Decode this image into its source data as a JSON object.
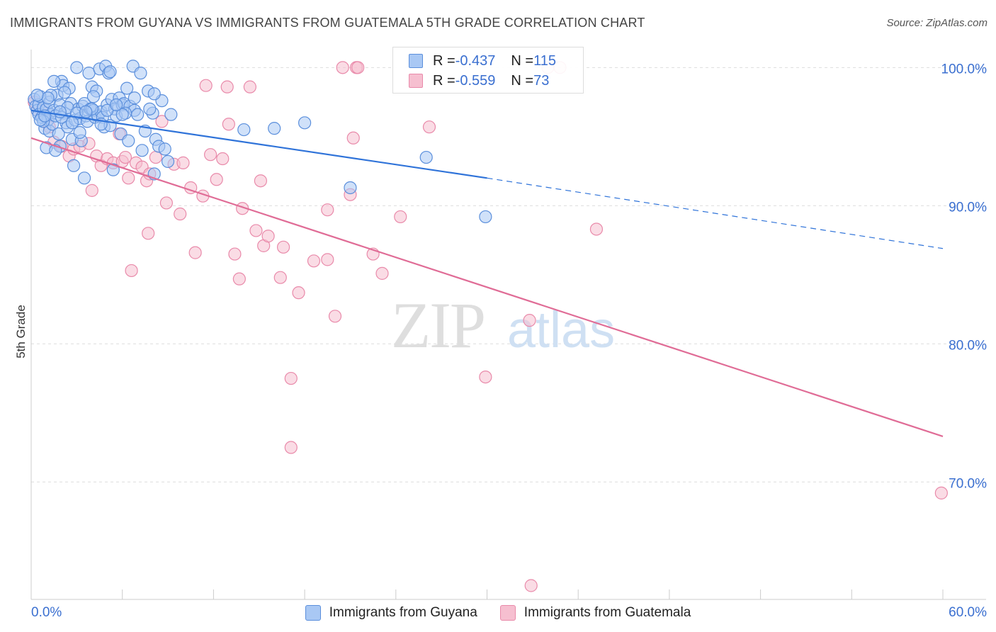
{
  "header": {
    "title": "IMMIGRANTS FROM GUYANA VS IMMIGRANTS FROM GUATEMALA 5TH GRADE CORRELATION CHART",
    "source": "Source: ZipAtlas.com"
  },
  "watermark": {
    "zip": "ZIP",
    "atlas": "atlas"
  },
  "colors": {
    "guyana_fill": "#a9c8f4",
    "guyana_stroke": "#5b8fdc",
    "guyana_line": "#2f73d9",
    "guatemala_fill": "#f6bfd0",
    "guatemala_stroke": "#e98aaa",
    "guatemala_line": "#e06c96",
    "axis_label": "#3a6fd0",
    "grid": "#dddddd"
  },
  "stats": [
    {
      "r_label": "R = ",
      "r_value": "-0.437",
      "n_label": "N = ",
      "n_value": "115"
    },
    {
      "r_label": "R = ",
      "r_value": "-0.559",
      "n_label": "N = ",
      "n_value": "73"
    }
  ],
  "legend": [
    {
      "label": "Immigrants from Guyana"
    },
    {
      "label": "Immigrants from Guatemala"
    }
  ],
  "chart_data": {
    "type": "scatter",
    "title": "IMMIGRANTS FROM GUYANA VS IMMIGRANTS FROM GUATEMALA 5TH GRADE CORRELATION CHART",
    "xlabel": "",
    "ylabel": "5th Grade",
    "xlim": [
      0,
      60
    ],
    "ylim": [
      61.5,
      101.3
    ],
    "x_tick_labels": [
      {
        "value": 0,
        "label": "0.0%"
      },
      {
        "value": 60,
        "label": "60.0%"
      }
    ],
    "y_tick_labels": [
      {
        "value": 100,
        "label": "100.0%"
      },
      {
        "value": 90,
        "label": "90.0%"
      },
      {
        "value": 80,
        "label": "80.0%"
      },
      {
        "value": 70,
        "label": "70.0%"
      }
    ],
    "grid": true,
    "series": [
      {
        "name": "Immigrants from Guyana",
        "r": -0.437,
        "n": 115,
        "trend": {
          "x0": 0,
          "y0": 96.9,
          "x1": 30,
          "y1": 92.0,
          "dash_to_x": 60,
          "dash_y": 86.9
        },
        "points": [
          [
            0.2,
            97.7
          ],
          [
            0.3,
            97.2
          ],
          [
            0.4,
            96.9
          ],
          [
            0.5,
            97.3
          ],
          [
            0.5,
            96.6
          ],
          [
            0.6,
            97.9
          ],
          [
            0.7,
            96.4
          ],
          [
            0.8,
            97.1
          ],
          [
            0.9,
            95.6
          ],
          [
            1.0,
            97.0
          ],
          [
            1.0,
            94.2
          ],
          [
            1.1,
            96.2
          ],
          [
            1.2,
            97.5
          ],
          [
            1.2,
            95.4
          ],
          [
            1.3,
            96.6
          ],
          [
            1.4,
            95.9
          ],
          [
            1.5,
            96.9
          ],
          [
            1.6,
            96.5
          ],
          [
            1.7,
            98.0
          ],
          [
            1.8,
            95.2
          ],
          [
            1.9,
            94.3
          ],
          [
            1.9,
            97.3
          ],
          [
            2.0,
            99.0
          ],
          [
            2.1,
            98.7
          ],
          [
            2.2,
            96.7
          ],
          [
            2.3,
            96.0
          ],
          [
            2.4,
            95.7
          ],
          [
            2.5,
            98.5
          ],
          [
            2.6,
            97.4
          ],
          [
            2.7,
            94.8
          ],
          [
            2.8,
            92.9
          ],
          [
            2.9,
            96.2
          ],
          [
            3.0,
            100.0
          ],
          [
            3.1,
            97.0
          ],
          [
            3.2,
            96.3
          ],
          [
            3.3,
            94.7
          ],
          [
            3.4,
            97.2
          ],
          [
            3.5,
            97.4
          ],
          [
            3.6,
            96.5
          ],
          [
            3.7,
            96.1
          ],
          [
            3.8,
            99.6
          ],
          [
            3.9,
            97.0
          ],
          [
            4.0,
            98.6
          ],
          [
            4.1,
            96.9
          ],
          [
            4.2,
            96.4
          ],
          [
            4.3,
            98.3
          ],
          [
            4.4,
            96.5
          ],
          [
            4.5,
            99.9
          ],
          [
            4.6,
            96.8
          ],
          [
            4.7,
            96.4
          ],
          [
            4.8,
            95.7
          ],
          [
            4.9,
            100.1
          ],
          [
            5.0,
            97.3
          ],
          [
            5.1,
            99.6
          ],
          [
            5.2,
            95.8
          ],
          [
            5.3,
            97.7
          ],
          [
            5.4,
            92.6
          ],
          [
            5.5,
            97.0
          ],
          [
            5.6,
            96.5
          ],
          [
            5.8,
            97.8
          ],
          [
            5.9,
            95.2
          ],
          [
            6.0,
            97.3
          ],
          [
            6.1,
            97.4
          ],
          [
            6.3,
            98.5
          ],
          [
            6.4,
            94.7
          ],
          [
            6.5,
            97.2
          ],
          [
            6.7,
            100.1
          ],
          [
            6.8,
            96.9
          ],
          [
            7.0,
            96.6
          ],
          [
            7.2,
            99.6
          ],
          [
            7.3,
            94.0
          ],
          [
            7.5,
            95.4
          ],
          [
            7.7,
            98.3
          ],
          [
            8.0,
            96.7
          ],
          [
            8.2,
            94.8
          ],
          [
            8.4,
            94.3
          ],
          [
            8.6,
            97.6
          ],
          [
            8.8,
            94.1
          ],
          [
            9.0,
            93.2
          ],
          [
            9.2,
            96.6
          ],
          [
            8.1,
            98.1
          ],
          [
            6.2,
            96.7
          ],
          [
            4.1,
            97.9
          ],
          [
            3.2,
            95.3
          ],
          [
            2.4,
            97.1
          ],
          [
            1.5,
            99.0
          ],
          [
            0.8,
            96.1
          ],
          [
            1.3,
            98.0
          ],
          [
            2.0,
            96.4
          ],
          [
            3.0,
            96.7
          ],
          [
            4.0,
            97.0
          ],
          [
            5.0,
            96.9
          ],
          [
            6.0,
            96.6
          ],
          [
            6.8,
            97.8
          ],
          [
            7.8,
            97.0
          ],
          [
            1.1,
            97.8
          ],
          [
            1.9,
            96.8
          ],
          [
            2.7,
            96.0
          ],
          [
            3.6,
            96.8
          ],
          [
            4.6,
            95.9
          ],
          [
            5.6,
            97.3
          ],
          [
            0.4,
            98.0
          ],
          [
            0.6,
            96.2
          ],
          [
            0.9,
            96.5
          ],
          [
            1.6,
            94.0
          ],
          [
            2.2,
            98.2
          ],
          [
            5.2,
            99.7
          ],
          [
            3.5,
            92.0
          ],
          [
            8.1,
            92.3
          ],
          [
            14.0,
            95.5
          ],
          [
            16.0,
            95.6
          ],
          [
            18.0,
            96.0
          ],
          [
            21.0,
            91.3
          ],
          [
            26.0,
            93.5
          ],
          [
            29.9,
            89.2
          ]
        ]
      },
      {
        "name": "Immigrants from Guatemala",
        "r": -0.559,
        "n": 73,
        "trend": {
          "x0": 0,
          "y0": 94.9,
          "x1": 60,
          "y1": 73.3
        },
        "points": [
          [
            0.2,
            97.5
          ],
          [
            0.4,
            96.9
          ],
          [
            0.8,
            96.8
          ],
          [
            1.2,
            95.7
          ],
          [
            1.5,
            94.6
          ],
          [
            2.0,
            94.3
          ],
          [
            2.5,
            93.6
          ],
          [
            2.8,
            94.1
          ],
          [
            3.2,
            94.3
          ],
          [
            3.8,
            94.5
          ],
          [
            4.0,
            91.1
          ],
          [
            4.3,
            93.6
          ],
          [
            4.6,
            92.9
          ],
          [
            5.0,
            93.4
          ],
          [
            5.4,
            93.1
          ],
          [
            5.8,
            95.2
          ],
          [
            6.0,
            93.2
          ],
          [
            6.2,
            93.5
          ],
          [
            6.4,
            92.0
          ],
          [
            6.6,
            85.3
          ],
          [
            6.9,
            93.1
          ],
          [
            7.3,
            92.8
          ],
          [
            7.6,
            91.8
          ],
          [
            7.8,
            92.3
          ],
          [
            7.7,
            88.0
          ],
          [
            8.2,
            93.5
          ],
          [
            8.6,
            96.1
          ],
          [
            8.9,
            90.2
          ],
          [
            9.4,
            93.0
          ],
          [
            9.8,
            89.4
          ],
          [
            10.0,
            93.1
          ],
          [
            10.5,
            91.3
          ],
          [
            10.8,
            86.6
          ],
          [
            11.3,
            90.7
          ],
          [
            11.5,
            98.7
          ],
          [
            11.8,
            93.7
          ],
          [
            12.2,
            91.9
          ],
          [
            12.6,
            93.4
          ],
          [
            12.9,
            98.6
          ],
          [
            13.0,
            95.9
          ],
          [
            13.4,
            86.5
          ],
          [
            13.7,
            84.7
          ],
          [
            13.9,
            89.8
          ],
          [
            14.4,
            98.6
          ],
          [
            14.8,
            88.2
          ],
          [
            15.1,
            91.8
          ],
          [
            15.3,
            87.1
          ],
          [
            15.6,
            87.8
          ],
          [
            16.4,
            84.8
          ],
          [
            16.6,
            87.0
          ],
          [
            17.1,
            77.5
          ],
          [
            17.1,
            72.5
          ],
          [
            17.6,
            83.7
          ],
          [
            18.6,
            86.0
          ],
          [
            19.5,
            86.1
          ],
          [
            19.5,
            89.7
          ],
          [
            20.0,
            82.0
          ],
          [
            20.5,
            100.0
          ],
          [
            21.0,
            90.8
          ],
          [
            21.2,
            94.9
          ],
          [
            21.4,
            100.0
          ],
          [
            21.5,
            100.0
          ],
          [
            22.5,
            86.5
          ],
          [
            23.1,
            85.1
          ],
          [
            24.3,
            89.2
          ],
          [
            26.2,
            95.7
          ],
          [
            29.9,
            77.6
          ],
          [
            32.8,
            81.7
          ],
          [
            32.9,
            62.5
          ],
          [
            34.0,
            100.0
          ],
          [
            34.8,
            100.0
          ],
          [
            37.2,
            88.3
          ],
          [
            59.9,
            69.2
          ]
        ]
      }
    ]
  }
}
